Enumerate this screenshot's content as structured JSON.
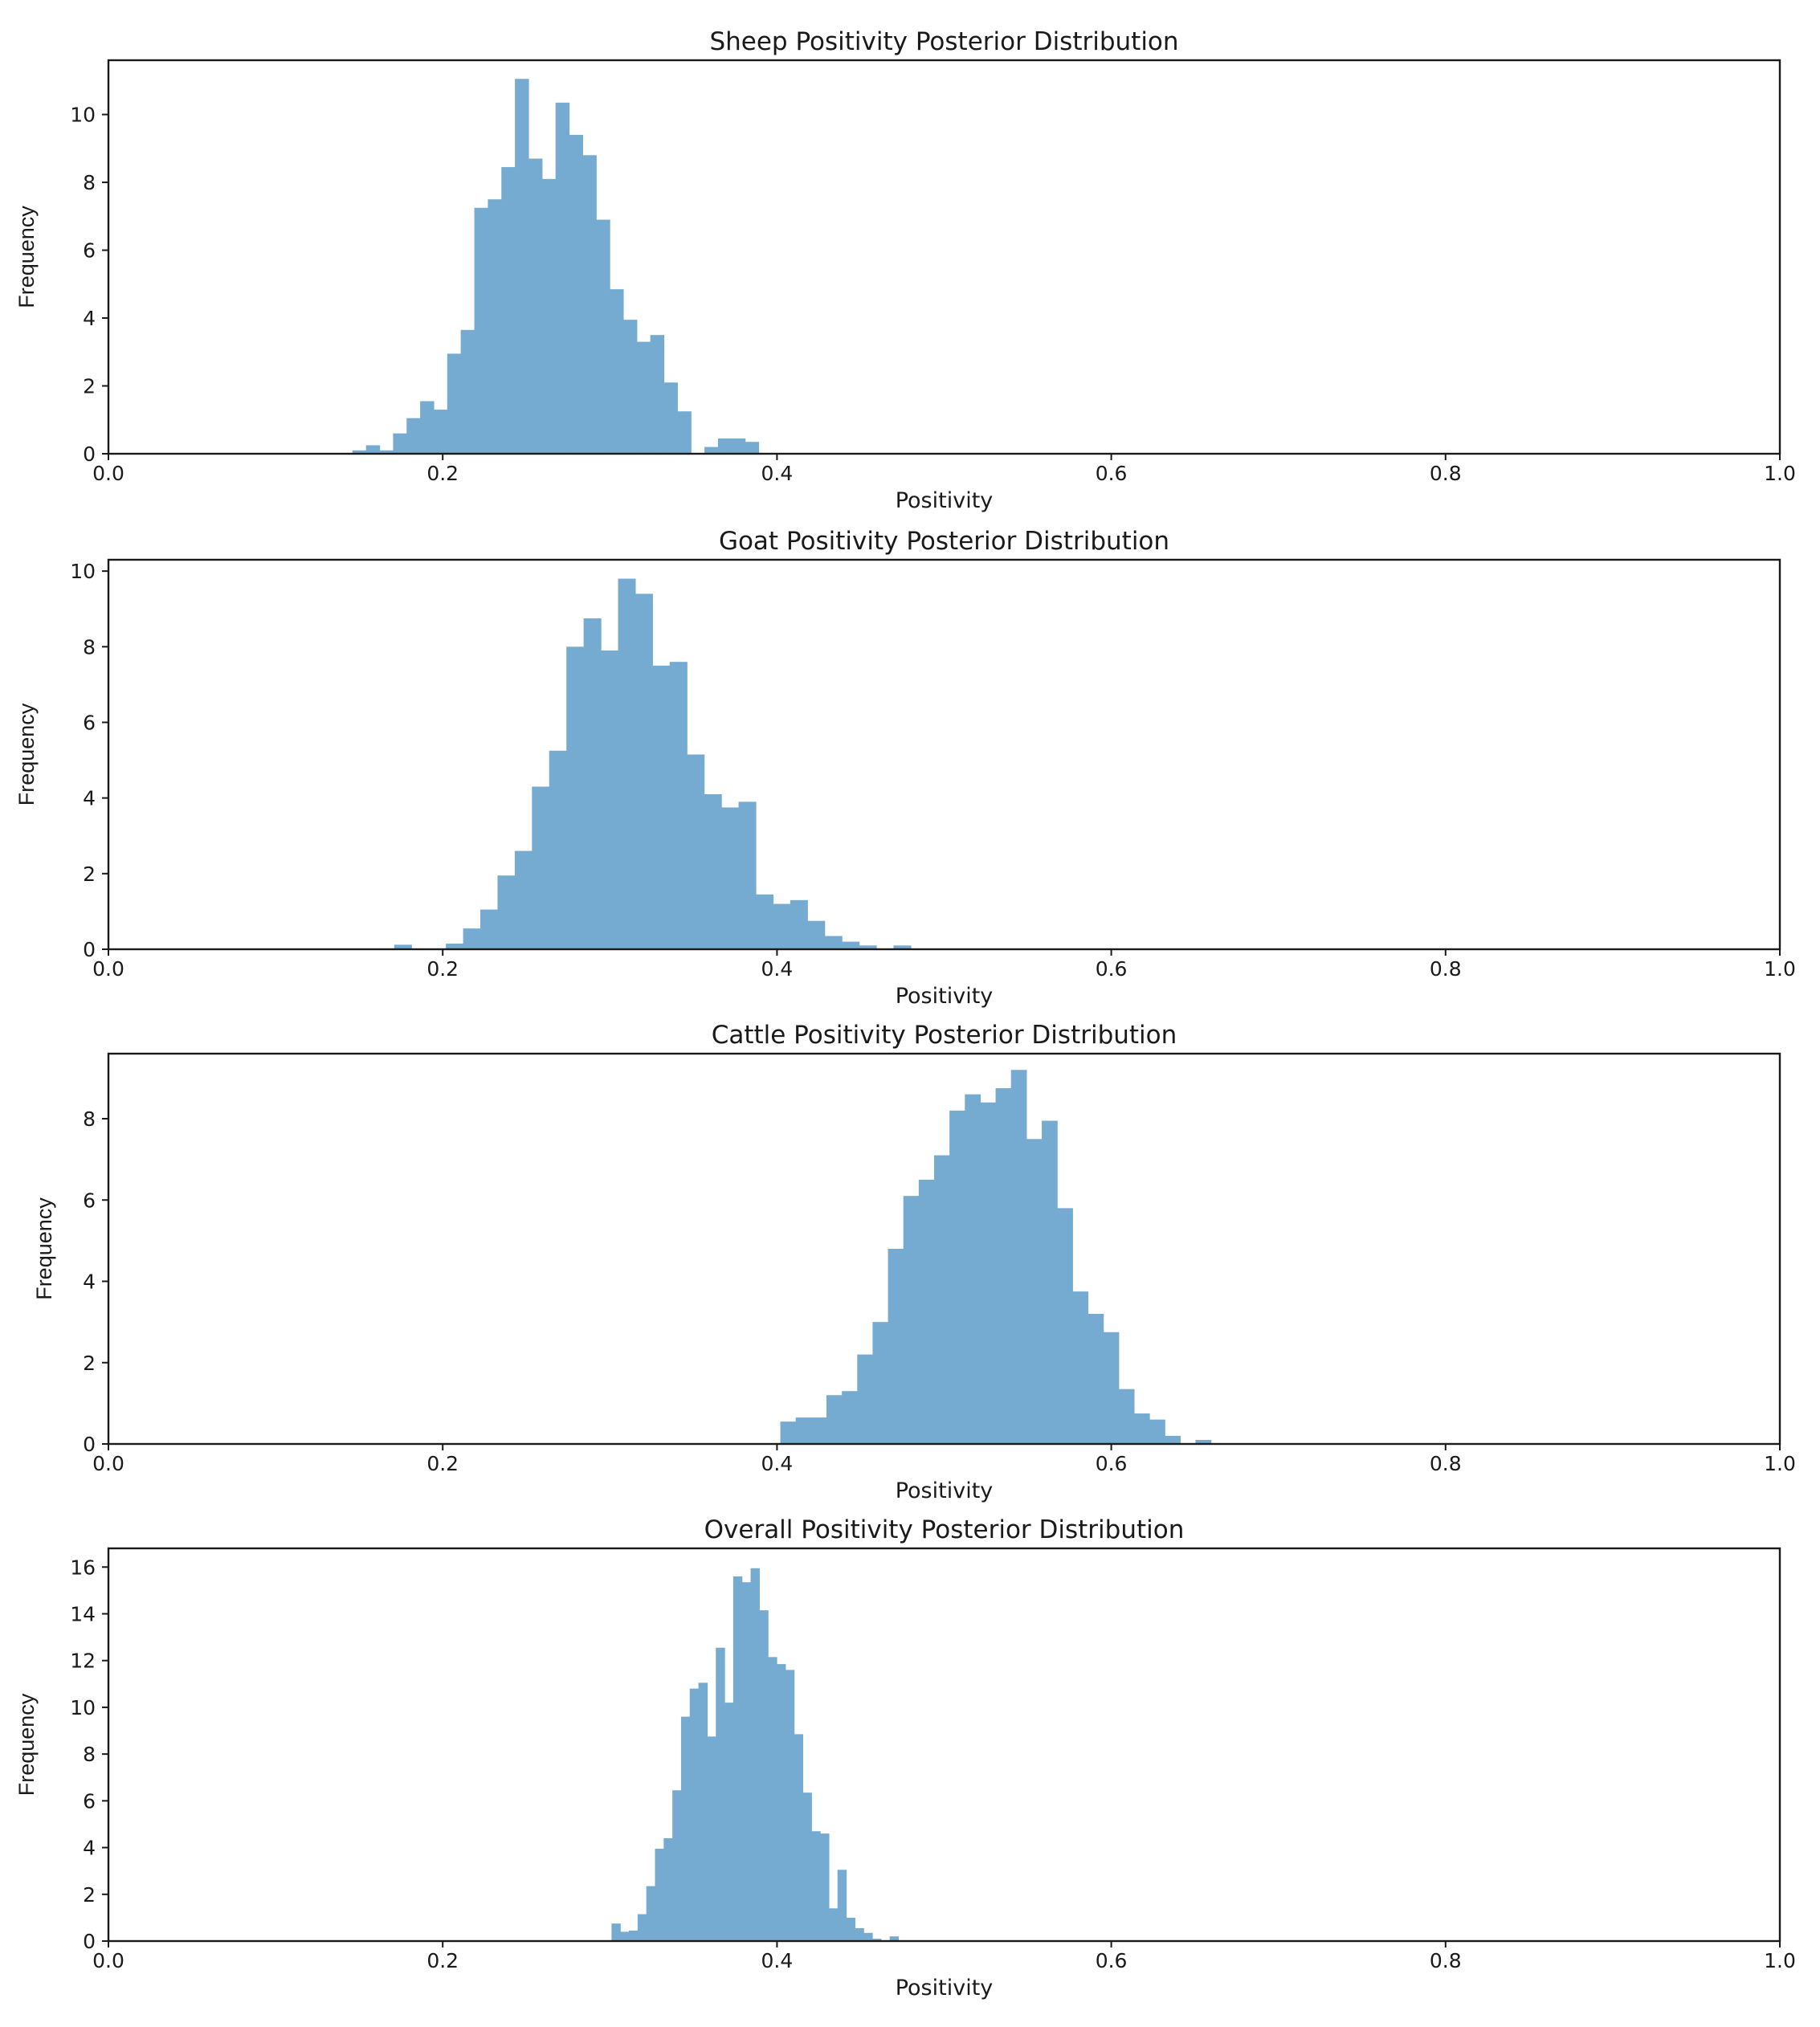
{
  "chart_data": [
    {
      "type": "bar",
      "title": "Sheep Positivity Posterior Distribution",
      "xlabel": "Positivity",
      "ylabel": "Frequency",
      "xlim": [
        0,
        1
      ],
      "ylim": [
        0,
        11.6
      ],
      "xticks": [
        "0.0",
        "0.2",
        "0.4",
        "0.6",
        "0.8",
        "1.0"
      ],
      "yticks": [
        "0",
        "2",
        "4",
        "6",
        "8",
        "10"
      ],
      "ytick_values": [
        0,
        2,
        4,
        6,
        8,
        10
      ],
      "bin_start": 0.146,
      "bin_width": 0.0081,
      "color": "#76abd1",
      "values": [
        0.1,
        0.25,
        0.1,
        0.6,
        1.05,
        1.55,
        1.3,
        2.95,
        3.65,
        7.25,
        7.5,
        8.45,
        11.05,
        8.7,
        8.1,
        10.35,
        9.4,
        8.8,
        6.9,
        4.85,
        3.95,
        3.3,
        3.5,
        2.1,
        1.25,
        0.0,
        0.2,
        0.45,
        0.45,
        0.35
      ]
    },
    {
      "type": "bar",
      "title": "Goat Positivity Posterior Distribution",
      "xlabel": "Positivity",
      "ylabel": "Frequency",
      "xlim": [
        0,
        1
      ],
      "ylim": [
        0,
        10.3
      ],
      "xticks": [
        "0.0",
        "0.2",
        "0.4",
        "0.6",
        "0.8",
        "1.0"
      ],
      "yticks": [
        "0",
        "2",
        "4",
        "6",
        "8",
        "10"
      ],
      "ytick_values": [
        0,
        2,
        4,
        6,
        8,
        10
      ],
      "bin_start": 0.171,
      "bin_width": 0.0103,
      "color": "#76abd1",
      "values": [
        0.12,
        0.0,
        0.0,
        0.15,
        0.55,
        1.05,
        1.95,
        2.6,
        4.3,
        5.25,
        8.0,
        8.75,
        7.9,
        9.8,
        9.4,
        7.5,
        7.6,
        5.15,
        4.1,
        3.75,
        3.9,
        1.45,
        1.2,
        1.3,
        0.75,
        0.35,
        0.2,
        0.1,
        0.0,
        0.1
      ]
    },
    {
      "type": "bar",
      "title": "Cattle Positivity Posterior Distribution",
      "xlabel": "Positivity",
      "ylabel": "Frequency",
      "xlim": [
        0,
        1
      ],
      "ylim": [
        0,
        9.6
      ],
      "xticks": [
        "0.0",
        "0.2",
        "0.4",
        "0.6",
        "0.8",
        "1.0"
      ],
      "yticks": [
        "0",
        "2",
        "4",
        "6",
        "8"
      ],
      "ytick_values": [
        0,
        2,
        4,
        6,
        8
      ],
      "bin_start": 0.402,
      "bin_width": 0.0092,
      "color": "#76abd1",
      "values": [
        0.55,
        0.65,
        0.65,
        1.2,
        1.3,
        2.2,
        3.0,
        4.8,
        6.1,
        6.5,
        7.1,
        8.2,
        8.6,
        8.4,
        8.75,
        9.2,
        7.5,
        7.95,
        5.8,
        3.75,
        3.2,
        2.75,
        1.35,
        0.75,
        0.6,
        0.2,
        0.0,
        0.1
      ]
    },
    {
      "type": "bar",
      "title": "Overall Positivity Posterior Distribution",
      "xlabel": "Positivity",
      "ylabel": "Frequency",
      "xlim": [
        0,
        1
      ],
      "ylim": [
        0,
        16.8
      ],
      "xticks": [
        "0.0",
        "0.2",
        "0.4",
        "0.6",
        "0.8",
        "1.0"
      ],
      "yticks": [
        "0",
        "2",
        "4",
        "6",
        "8",
        "10",
        "12",
        "14",
        "16"
      ],
      "ytick_values": [
        0,
        2,
        4,
        6,
        8,
        10,
        12,
        14,
        16
      ],
      "bin_start": 0.301,
      "bin_width": 0.0052,
      "color": "#76abd1",
      "values": [
        0.75,
        0.4,
        0.45,
        1.15,
        2.35,
        3.95,
        4.4,
        6.45,
        9.6,
        10.8,
        11.05,
        8.75,
        12.55,
        10.2,
        15.6,
        15.35,
        15.95,
        14.15,
        12.15,
        11.85,
        11.6,
        8.85,
        6.35,
        4.7,
        4.6,
        1.4,
        3.05,
        1.0,
        0.55,
        0.35,
        0.1,
        0.0,
        0.2
      ]
    }
  ]
}
